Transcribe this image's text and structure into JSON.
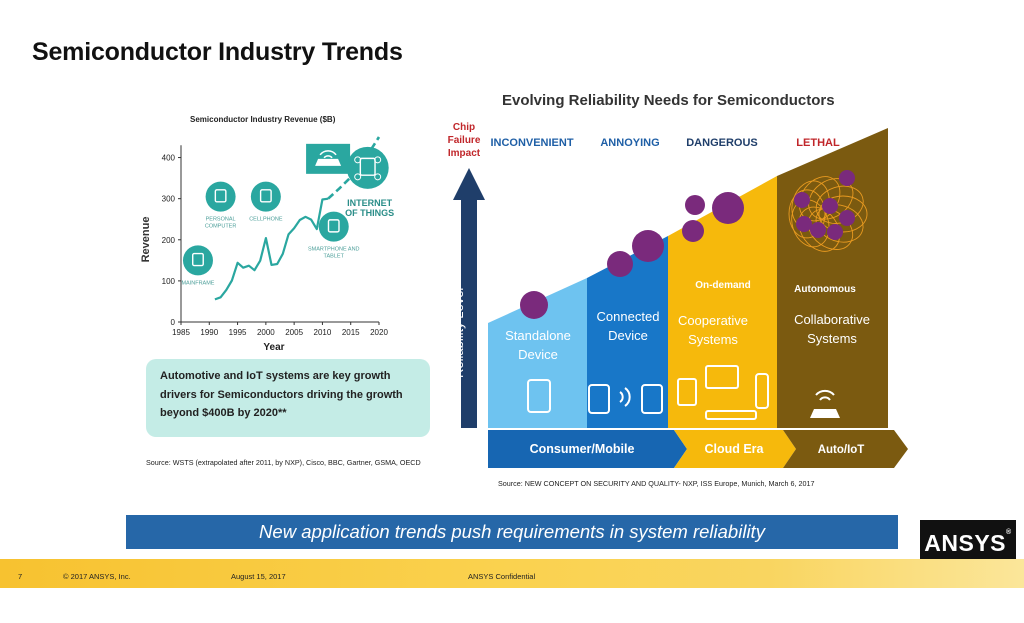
{
  "slide": {
    "title": "Semiconductor Industry Trends",
    "callout": "Automotive and IoT systems are key growth drivers for Semiconductors driving the growth beyond $400B by 2020**",
    "source_left": "Source: WSTS (extrapolated after 2011, by NXP), Cisco, BBC, Gartner, GSMA, OECD",
    "banner": "New application trends push requirements in system reliability",
    "logo": "ANSYS",
    "footer": {
      "page": "7",
      "copyright": "© 2017 ANSYS, Inc.",
      "date": "August 15, 2017",
      "confidential": "ANSYS Confidential"
    }
  },
  "chart_data": {
    "type": "line",
    "title": "Semiconductor Industry Revenue ($B)",
    "xlabel": "Year",
    "ylabel": "Revenue",
    "xlim": [
      1985,
      2020
    ],
    "ylim": [
      0,
      450
    ],
    "xticks": [
      1985,
      1990,
      1995,
      2000,
      2005,
      2010,
      2015,
      2020
    ],
    "yticks": [
      0,
      100,
      200,
      300,
      400
    ],
    "grid": false,
    "series": [
      {
        "style": "solid",
        "color": "#2aa7a0",
        "x": [
          1991,
          1992,
          1993,
          1994,
          1995,
          1996,
          1997,
          1998,
          1999,
          2000,
          2001,
          2002,
          2003,
          2004,
          2005,
          2006,
          2007,
          2008,
          2009,
          2010,
          2011
        ],
        "y": [
          55,
          60,
          78,
          101,
          144,
          132,
          137,
          126,
          149,
          204,
          139,
          141,
          166,
          213,
          228,
          248,
          256,
          249,
          226,
          298,
          300
        ]
      },
      {
        "style": "dashed",
        "color": "#2aa7a0",
        "x": [
          2011,
          2013,
          2015,
          2017,
          2020
        ],
        "y": [
          300,
          325,
          352,
          385,
          450
        ]
      }
    ],
    "annotations": [
      {
        "icon": "mainframe-icon",
        "label": "MAINFRAME",
        "x": 1988,
        "y": 150
      },
      {
        "icon": "personal-computer-icon",
        "label": "PERSONAL COMPUTER",
        "x": 1992,
        "y": 305
      },
      {
        "icon": "cellphone-icon",
        "label": "CELLPHONE",
        "x": 2000,
        "y": 305
      },
      {
        "icon": "smartphone-tablet-icon",
        "label": "SMARTPHONE AND TABLET",
        "x": 2012,
        "y": 232
      },
      {
        "icon": "connected-car-icon",
        "label": "",
        "x": 2011,
        "y": 392
      },
      {
        "icon": "iot-network-icon",
        "label": "INTERNET OF THINGS",
        "x": 2018,
        "y": 375
      }
    ]
  },
  "diagram": {
    "title": "Evolving Reliability Needs for Semiconductors",
    "axis_label": "Chip Failure Impact",
    "arrow_label": "Reliability Level",
    "stages": [
      {
        "impact": "INCONVENIENT",
        "impact_color": "#1f5fa6",
        "name": "Standalone Device",
        "era": "",
        "color": "#6ec3f0",
        "icon": "tablet-icon"
      },
      {
        "impact": "ANNOYING",
        "impact_color": "#1f5fa6",
        "name": "Connected Device",
        "era": "Consumer/Mobile",
        "color": "#1877c8",
        "icon": "connected-phones-icon"
      },
      {
        "impact": "DANGEROUS",
        "impact_color": "#1f3e6a",
        "name": "Cooperative Systems",
        "tag": "On-demand",
        "era": "Cloud Era",
        "color": "#f6b90c",
        "icon": "cloud-devices-icon"
      },
      {
        "impact": "LETHAL",
        "impact_color": "#c0262a",
        "name": "Collaborative Systems",
        "tag": "Autonomous",
        "era": "Auto/IoT",
        "color": "#7b5a10",
        "icon": "connected-car-icon"
      }
    ],
    "source": "Source: NEW CONCEPT ON SECURITY AND QUALITY- NXP, ISS Europe, Munich, March 6, 2017"
  }
}
